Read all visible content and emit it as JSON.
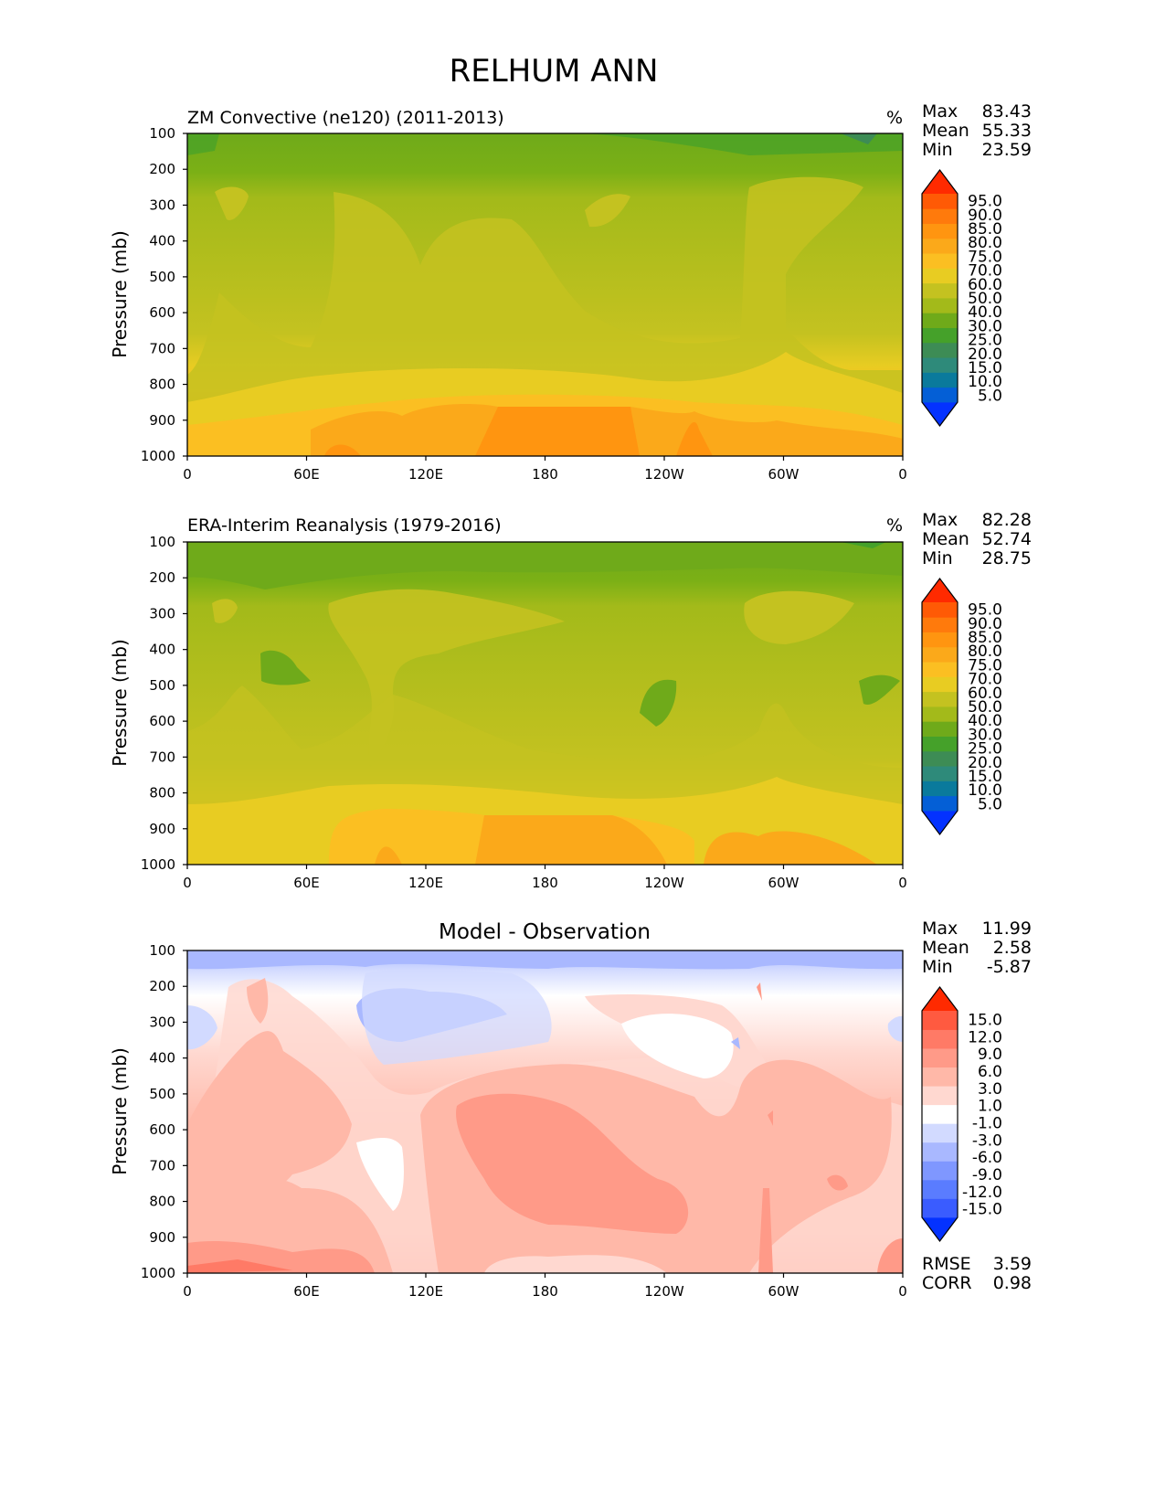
{
  "title": "RELHUM ANN",
  "chart_data": [
    {
      "type": "heatmap",
      "title": "ZM Convective (ne120) (2011-2013)",
      "units": "%",
      "ylabel": "Pressure (mb)",
      "xlabel": "",
      "xticks": [
        "0",
        "60E",
        "120E",
        "180",
        "120W",
        "60W",
        "0"
      ],
      "yticks": [
        "100",
        "200",
        "300",
        "400",
        "500",
        "600",
        "700",
        "800",
        "900",
        "1000"
      ],
      "xlim": [
        0,
        360
      ],
      "ylim": [
        100,
        1000
      ],
      "stats": [
        {
          "label": "Max",
          "value": "83.43"
        },
        {
          "label": "Mean",
          "value": "55.33"
        },
        {
          "label": "Min",
          "value": "23.59"
        }
      ],
      "colorbar": {
        "levels": [
          "5.0",
          "10.0",
          "15.0",
          "20.0",
          "25.0",
          "30.0",
          "40.0",
          "50.0",
          "60.0",
          "70.0",
          "75.0",
          "80.0",
          "85.0",
          "90.0",
          "95.0"
        ],
        "colors": [
          "#0432ff",
          "#045fd6",
          "#0a7a9c",
          "#2e8a7a",
          "#3d8c55",
          "#45a12a",
          "#6faa1a",
          "#a3ba1a",
          "#c4c220",
          "#e8cc22",
          "#fbbf22",
          "#fba91a",
          "#ff9510",
          "#ff7a0c",
          "#ff5a05",
          "#ff2a00"
        ]
      }
    },
    {
      "type": "heatmap",
      "title": "ERA-Interim Reanalysis (1979-2016)",
      "units": "%",
      "ylabel": "Pressure (mb)",
      "xlabel": "",
      "xticks": [
        "0",
        "60E",
        "120E",
        "180",
        "120W",
        "60W",
        "0"
      ],
      "yticks": [
        "100",
        "200",
        "300",
        "400",
        "500",
        "600",
        "700",
        "800",
        "900",
        "1000"
      ],
      "xlim": [
        0,
        360
      ],
      "ylim": [
        100,
        1000
      ],
      "stats": [
        {
          "label": "Max",
          "value": "82.28"
        },
        {
          "label": "Mean",
          "value": "52.74"
        },
        {
          "label": "Min",
          "value": "28.75"
        }
      ],
      "colorbar": {
        "levels": [
          "5.0",
          "10.0",
          "15.0",
          "20.0",
          "25.0",
          "30.0",
          "40.0",
          "50.0",
          "60.0",
          "70.0",
          "75.0",
          "80.0",
          "85.0",
          "90.0",
          "95.0"
        ],
        "colors": [
          "#0432ff",
          "#045fd6",
          "#0a7a9c",
          "#2e8a7a",
          "#3d8c55",
          "#45a12a",
          "#6faa1a",
          "#a3ba1a",
          "#c4c220",
          "#e8cc22",
          "#fbbf22",
          "#fba91a",
          "#ff9510",
          "#ff7a0c",
          "#ff5a05",
          "#ff2a00"
        ]
      }
    },
    {
      "type": "heatmap",
      "title": "Model - Observation",
      "units": "",
      "ylabel": "Pressure (mb)",
      "xlabel": "",
      "xticks": [
        "0",
        "60E",
        "120E",
        "180",
        "120W",
        "60W",
        "0"
      ],
      "yticks": [
        "100",
        "200",
        "300",
        "400",
        "500",
        "600",
        "700",
        "800",
        "900",
        "1000"
      ],
      "xlim": [
        0,
        360
      ],
      "ylim": [
        100,
        1000
      ],
      "stats": [
        {
          "label": "Max",
          "value": "11.99"
        },
        {
          "label": "Mean",
          "value": "2.58"
        },
        {
          "label": "Min",
          "value": "-5.87"
        }
      ],
      "extra_stats": [
        {
          "label": "RMSE",
          "value": "3.59"
        },
        {
          "label": "CORR",
          "value": "0.98"
        }
      ],
      "colorbar": {
        "levels": [
          "-15.0",
          "-12.0",
          "-9.0",
          "-6.0",
          "-3.0",
          "-1.0",
          "1.0",
          "3.0",
          "6.0",
          "9.0",
          "12.0",
          "15.0"
        ],
        "colors": [
          "#0432ff",
          "#3a5cff",
          "#5a7cff",
          "#7f97ff",
          "#a9b8ff",
          "#d2daff",
          "#ffffff",
          "#ffd8d0",
          "#ffb8a8",
          "#ff9a88",
          "#ff7a66",
          "#ff5a40",
          "#ff2a00"
        ]
      }
    }
  ]
}
